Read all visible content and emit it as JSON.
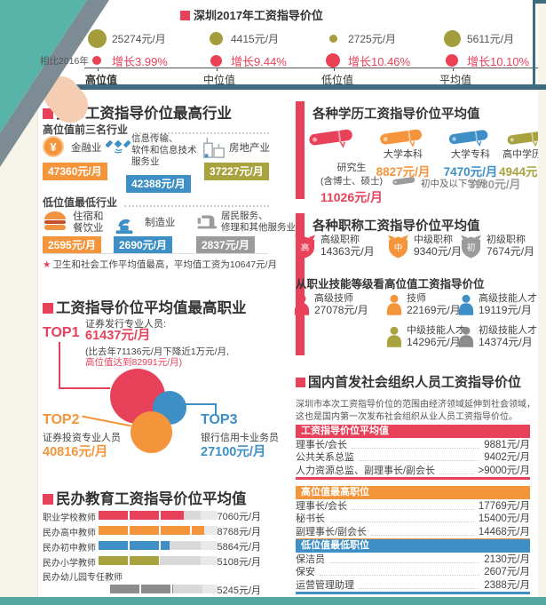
{
  "colors": {
    "accent_red": "#e8415a",
    "orange": "#f5953b",
    "blue": "#3d8fc6",
    "olive": "#a8a23f",
    "gray": "#8c8c8c",
    "slate": "#3e6b80",
    "teal": "#58b3a9",
    "cream": "#f6f3e9"
  },
  "header": {
    "title": "深圳2017年工资指导价位",
    "compare_label": "相比2016年",
    "stats": [
      {
        "value": "25274元/月",
        "growth": "增长3.99%",
        "label": "高位值"
      },
      {
        "value": "4415元/月",
        "growth": "增长9.44%",
        "label": "中位值"
      },
      {
        "value": "2725元/月",
        "growth": "增长10.46%",
        "label": "低位值"
      },
      {
        "value": "5611元/月",
        "growth": "增长10.10%",
        "label": "平均值"
      }
    ]
  },
  "industry": {
    "title": "全市工资指导价位最高行业",
    "high_label": "高位值前三名行业",
    "high": [
      {
        "name": "金融业",
        "value": "47360元/月",
        "icon": "yen-coin-icon",
        "glyph": "¥",
        "color": "#f5953b"
      },
      {
        "line1": "信息传输、",
        "line2": "软件和信息技术",
        "line3": "服务业",
        "value": "42388元/月",
        "icon": "satellite-icon",
        "color": "#3d8fc6"
      },
      {
        "name": "房地产业",
        "value": "37227元/月",
        "icon": "building-icon",
        "color": "#a8a23f"
      }
    ],
    "low_label": "低位值最低行业",
    "low": [
      {
        "line1": "住宿和",
        "line2": "餐饮业",
        "value": "2595元/月",
        "icon": "burger-icon",
        "color": "#f5953b"
      },
      {
        "name": "制造业",
        "value": "2690元/月",
        "icon": "robot-arm-icon",
        "color": "#3d8fc6"
      },
      {
        "line1": "居民服务、",
        "line2": "修理和其他服务业",
        "value": "2837元/月",
        "icon": "sewing-machine-icon",
        "color": "#9b9b9b"
      }
    ],
    "note_star": "★",
    "note": "卫生和社会工作平均值最高，平均值工资为10647元/月"
  },
  "occupation": {
    "title": "工资指导价位平均值最高职业",
    "top1": {
      "rank": "TOP1",
      "name": "证券发行专业人员:",
      "value": "61437元/月",
      "note_line1": "(比去年71136元/月下降近1万元/月,",
      "note_line2": "高位值达到82991元/月)"
    },
    "top2": {
      "rank": "TOP2",
      "name": "证券投资专业人员",
      "value": "40816元/月"
    },
    "top3": {
      "rank": "TOP3",
      "name": "银行信用卡业务员",
      "value": "27100元/月"
    }
  },
  "private_education": {
    "title": "民办教育工资指导价位平均值",
    "scale_max": 8768,
    "bars": [
      {
        "label": "职业学校教师",
        "value": 7060,
        "display": "7060元/月",
        "color": "#e8415a"
      },
      {
        "label": "民办高中教师",
        "value": 8768,
        "display": "8768元/月",
        "color": "#f5953b"
      },
      {
        "label": "民办初中教师",
        "value": 5864,
        "display": "5864元/月",
        "color": "#3d8fc6"
      },
      {
        "label": "民办小学教师",
        "value": 5108,
        "display": "5108元/月",
        "color": "#a8a23f"
      },
      {
        "label": "民办幼儿园专任教师",
        "value": 5245,
        "display": "5245元/月",
        "color": "#8c8c8c"
      }
    ]
  },
  "education_levels": {
    "title": "各种学历工资指导价位平均值",
    "items": [
      {
        "name": "研究生",
        "name2": "(含博士、硕士)",
        "value": "11026元/月",
        "icon": "diploma-scroll-icon",
        "color": "#e8415a"
      },
      {
        "name": "大学本科",
        "value": "8827元/月",
        "icon": "diploma-scroll-icon",
        "color": "#f5953b"
      },
      {
        "name": "大学专科",
        "value": "7470元/月",
        "icon": "diploma-scroll-icon",
        "color": "#3d8fc6"
      },
      {
        "name": "高中学历",
        "value": "4944元/月",
        "icon": "diploma-scroll-icon",
        "color": "#a8a23f"
      },
      {
        "name": "初中及以下学历",
        "value": "3980元/月",
        "icon": "diploma-scroll-icon",
        "color": "#9b9b9b"
      }
    ]
  },
  "professional_titles": {
    "title": "各种职称工资指导价位平均值",
    "ranks": [
      {
        "char": "高",
        "name": "高级职称",
        "value": "14363元/月",
        "icon": "shield-icon",
        "color": "#e8415a"
      },
      {
        "char": "中",
        "name": "中级职称",
        "value": "9340元/月",
        "icon": "shield-icon",
        "color": "#f5953b"
      },
      {
        "char": "初",
        "name": "初级职称",
        "value": "7674元/月",
        "icon": "shield-icon",
        "color": "#9b9b9b"
      }
    ],
    "skills_title": "从职业技能等级看高位值工资指导价位",
    "skills": [
      {
        "name": "高级技师",
        "value": "27078元/月",
        "icon": "person-icon",
        "color": "#e8415a"
      },
      {
        "name": "技师",
        "value": "22169元/月",
        "icon": "person-icon",
        "color": "#f5953b"
      },
      {
        "name": "高级技能人才",
        "value": "19119元/月",
        "icon": "person-icon",
        "color": "#3d8fc6"
      },
      {
        "name": "中级技能人才",
        "value": "14296元/月",
        "icon": "person-icon",
        "color": "#a8a23f"
      },
      {
        "name": "初级技能人才",
        "value": "14374元/月",
        "icon": "person-icon",
        "color": "#8c8c8c"
      }
    ]
  },
  "social_org": {
    "title": "国内首发社会组织人员工资指导价位",
    "para_line1": "深圳市本次工资指导价位的范围由经济领域延伸到社会领域，",
    "para_line2": "这也是国内第一次发布社会组织从业人员工资指导价位。",
    "tables": [
      {
        "header": "工资指导价位平均值",
        "color": "#e8415a",
        "rows": [
          {
            "name": "理事长/会长",
            "value": "9881元/月"
          },
          {
            "name": "公共关系总监",
            "value": "9402元/月"
          },
          {
            "name": "人力资源总监、副理事长/副会长",
            "value": ">9000元/月"
          }
        ]
      },
      {
        "header": "高位值最高职位",
        "color": "#f5953b",
        "rows": [
          {
            "name": "理事长/会长",
            "value": "17769元/月"
          },
          {
            "name": "秘书长",
            "value": "15400元/月"
          },
          {
            "name": "副理事长/副会长",
            "value": "14468元/月"
          }
        ]
      },
      {
        "header": "低位值最低职位",
        "color": "#3d8fc6",
        "rows": [
          {
            "name": "保洁员",
            "value": "2130元/月"
          },
          {
            "name": "保安",
            "value": "2607元/月"
          },
          {
            "name": "运营管理助理",
            "value": "2388元/月"
          }
        ]
      }
    ]
  },
  "chart_data": [
    {
      "type": "bar",
      "title": "深圳2017年工资指导价位",
      "categories": [
        "高位值",
        "中位值",
        "低位值",
        "平均值"
      ],
      "series": [
        {
          "name": "2017年价位(元/月)",
          "values": [
            25274,
            4415,
            2725,
            5611
          ]
        },
        {
          "name": "相比2016年增长(%)",
          "values": [
            3.99,
            9.44,
            10.46,
            10.1
          ]
        }
      ]
    },
    {
      "type": "bar",
      "title": "全市工资指导价位最高行业(高位值前三名)",
      "ylabel": "元/月",
      "categories": [
        "金融业",
        "信息传输、软件和信息技术服务业",
        "房地产业"
      ],
      "values": [
        47360,
        42388,
        37227
      ]
    },
    {
      "type": "bar",
      "title": "低位值最低行业",
      "ylabel": "元/月",
      "categories": [
        "住宿和餐饮业",
        "制造业",
        "居民服务、修理和其他服务业"
      ],
      "values": [
        2595,
        2690,
        2837
      ]
    },
    {
      "type": "scatter",
      "title": "工资指导价位平均值最高职业(平均值, 元/月)",
      "points": [
        {
          "label": "TOP1 证券发行专业人员",
          "value": 61437,
          "high_value": 82991,
          "last_year": 71136
        },
        {
          "label": "TOP2 证券投资专业人员",
          "value": 40816
        },
        {
          "label": "TOP3 银行信用卡业务员",
          "value": 27100
        }
      ]
    },
    {
      "type": "bar",
      "title": "民办教育工资指导价位平均值",
      "xlabel": "元/月",
      "xlim": [
        0,
        9800
      ],
      "categories": [
        "职业学校教师",
        "民办高中教师",
        "民办初中教师",
        "民办小学教师",
        "民办幼儿园专任教师"
      ],
      "values": [
        7060,
        8768,
        5864,
        5108,
        5245
      ]
    },
    {
      "type": "bar",
      "title": "各种学历工资指导价位平均值",
      "ylabel": "元/月",
      "categories": [
        "研究生(含博士、硕士)",
        "大学本科",
        "大学专科",
        "高中学历",
        "初中及以下学历"
      ],
      "values": [
        11026,
        8827,
        7470,
        4944,
        3980
      ]
    },
    {
      "type": "bar",
      "title": "各种职称工资指导价位平均值",
      "ylabel": "元/月",
      "categories": [
        "高级职称",
        "中级职称",
        "初级职称"
      ],
      "values": [
        14363,
        9340,
        7674
      ]
    },
    {
      "type": "bar",
      "title": "从职业技能等级看高位值工资指导价位",
      "ylabel": "元/月",
      "categories": [
        "高级技师",
        "技师",
        "高级技能人才",
        "中级技能人才",
        "初级技能人才"
      ],
      "values": [
        27078,
        22169,
        19119,
        14296,
        14374
      ]
    },
    {
      "type": "table",
      "title": "社会组织人员工资指导价位",
      "rows": [
        [
          "工资指导价位平均值",
          "理事长/会长",
          9881
        ],
        [
          "工资指导价位平均值",
          "公共关系总监",
          9402
        ],
        [
          "工资指导价位平均值",
          "人力资源总监、副理事长/副会长",
          ">9000"
        ],
        [
          "高位值最高职位",
          "理事长/会长",
          17769
        ],
        [
          "高位值最高职位",
          "秘书长",
          15400
        ],
        [
          "高位值最高职位",
          "副理事长/副会长",
          14468
        ],
        [
          "低位值最低职位",
          "保洁员",
          2130
        ],
        [
          "低位值最低职位",
          "保安",
          2607
        ],
        [
          "低位值最低职位",
          "运营管理助理",
          2388
        ]
      ]
    }
  ]
}
